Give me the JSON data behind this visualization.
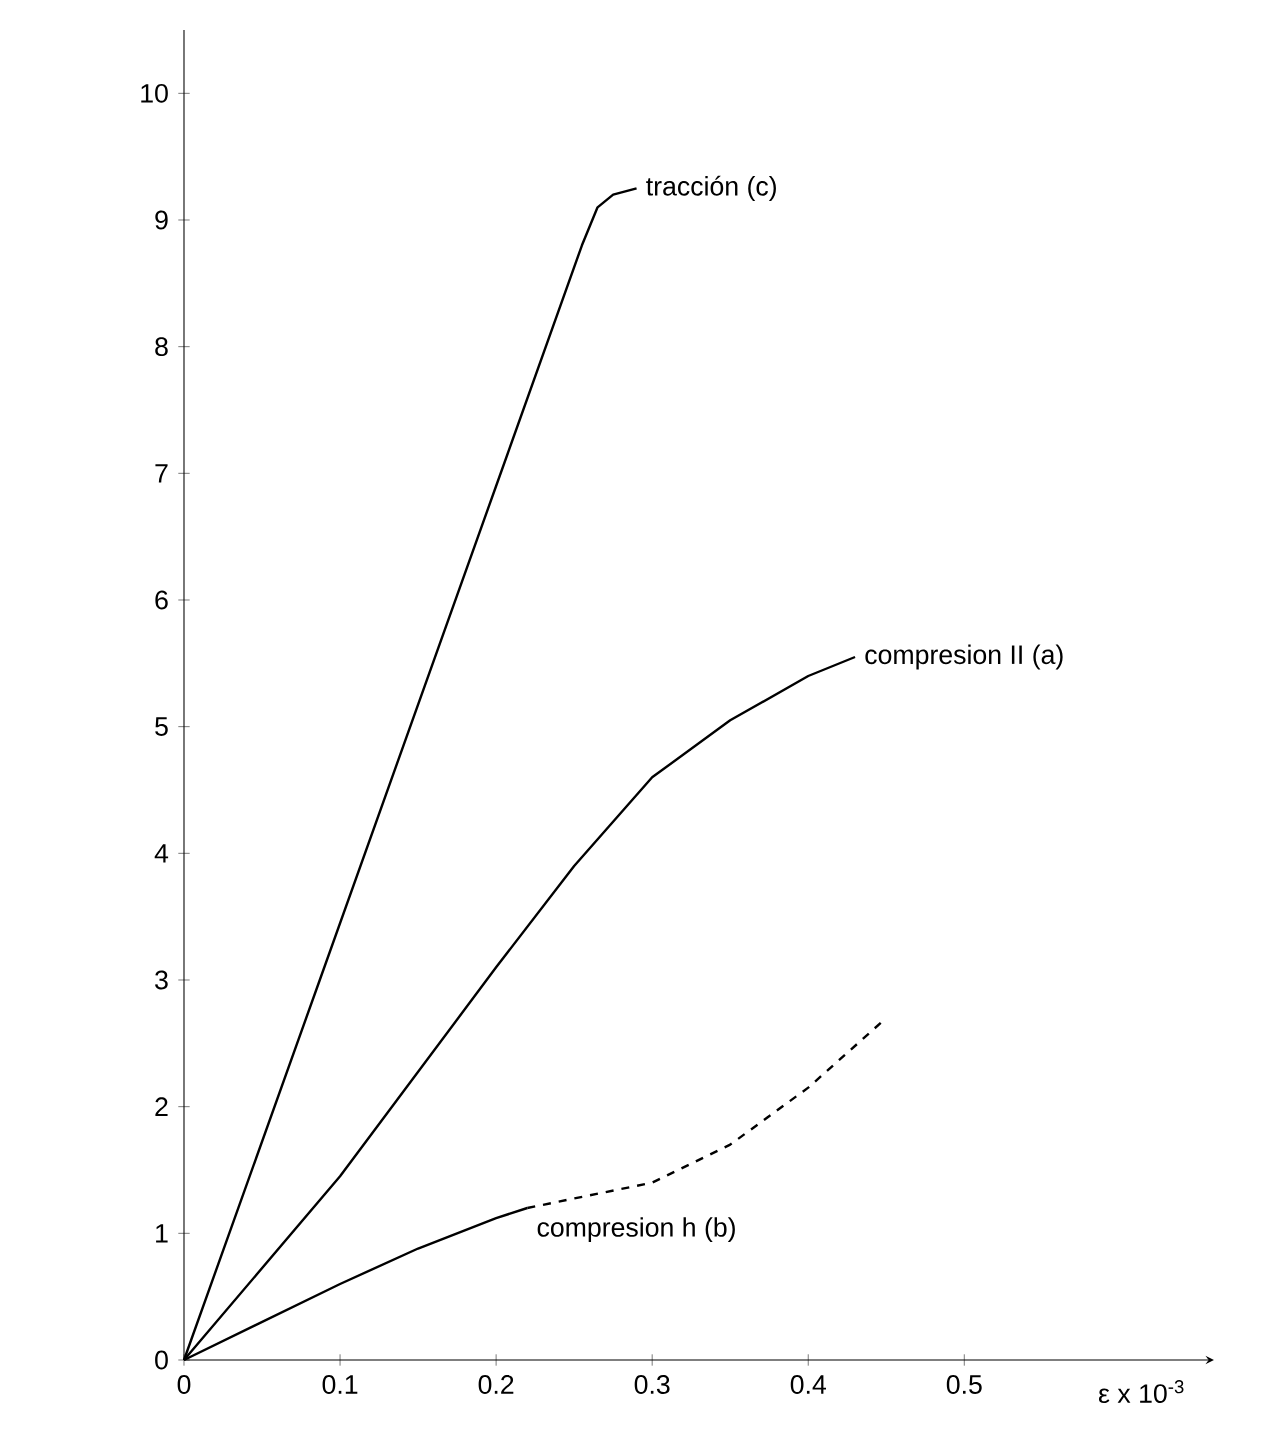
{
  "chart_data": {
    "type": "line",
    "xlabel": "ε x 10$^{-3}$",
    "xlim": [
      0,
      0.66
    ],
    "ylim": [
      0,
      10.5
    ],
    "xticks": [
      0,
      0.1,
      0.2,
      0.3,
      0.4,
      0.5
    ],
    "yticks": [
      0,
      1,
      2,
      3,
      4,
      5,
      6,
      7,
      8,
      9,
      10
    ],
    "grid": false,
    "marker": "none",
    "series": [
      {
        "name": "tracción (c)",
        "color": "#000000",
        "line_style": "solid",
        "x": [
          0,
          0.087,
          0.2,
          0.255,
          0.265,
          0.275,
          0.29
        ],
        "values": [
          0,
          3,
          6.9,
          8.8,
          9.1,
          9.2,
          9.25
        ]
      },
      {
        "name": "compresion II (a)",
        "color": "#000000",
        "line_style": "solid",
        "x": [
          0,
          0.1,
          0.2,
          0.25,
          0.3,
          0.35,
          0.4,
          0.43
        ],
        "values": [
          0,
          1.45,
          3.1,
          3.9,
          4.6,
          5.05,
          5.4,
          5.55
        ]
      },
      {
        "name": "compresion h (b)",
        "color": "#000000",
        "line_style": "solid",
        "x": [
          0,
          0.1,
          0.15,
          0.2,
          0.22
        ],
        "values": [
          0,
          0.6,
          0.88,
          1.12,
          1.2
        ]
      },
      {
        "color": "#000000",
        "line_style": "dashed",
        "x": [
          0.22,
          0.3,
          0.35,
          0.4,
          0.45
        ],
        "values": [
          1.2,
          1.4,
          1.7,
          2.15,
          2.7
        ]
      }
    ]
  }
}
